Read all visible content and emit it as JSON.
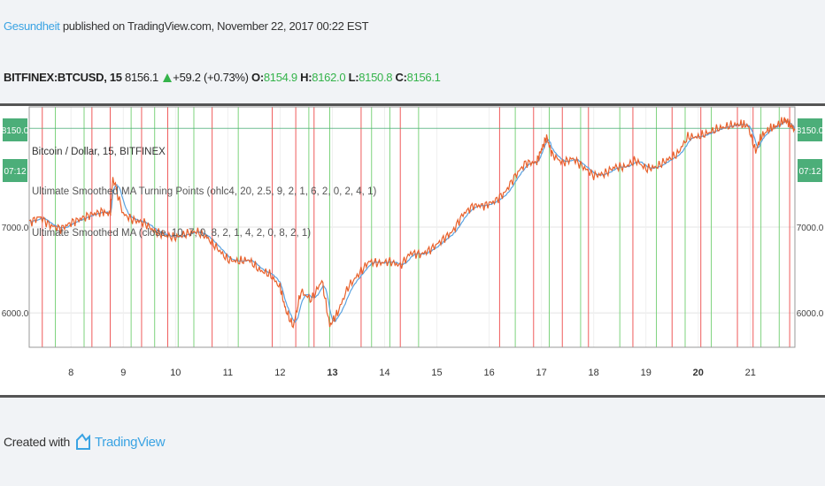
{
  "header": {
    "author": "Gesundheit",
    "published": "published on TradingView.com, November 22, 2017 00:22 EST"
  },
  "ticker": {
    "symbol": "BITFINEX:BTCUSD, 15",
    "last": "8156.1",
    "change": "+59.2 (+0.73%)",
    "o_label": "O:",
    "o_value": "8154.9",
    "h_label": "H:",
    "h_value": "8162.0",
    "l_label": "L:",
    "l_value": "8150.8",
    "c_label": "C:",
    "c_value": "8156.1"
  },
  "footer": {
    "created_with": "Created with",
    "brand": "TradingView"
  },
  "chart_data": {
    "type": "line",
    "legend": {
      "title": "Bitcoin / Dollar, 15, BITFINEX",
      "indicator1": "Ultimate Smoothed MA Turning Points (ohlc4, 20, 2.5, 9, 2, 1, 6, 2, 0, 2, 4, 1)",
      "indicator2": "Ultimate Smoothed MA (close, 10, 7, 0, 8, 2, 1, 4, 2, 0, 8, 2, 1)"
    },
    "x_ticks": [
      "8",
      "9",
      "10",
      "11",
      "12",
      "13",
      "14",
      "15",
      "16",
      "17",
      "18",
      "19",
      "20",
      "21"
    ],
    "x_ticks_bold": [
      "13",
      "20"
    ],
    "y_ticks": [
      "7000.0",
      "6000.0"
    ],
    "y_tick_values": [
      7000,
      6000
    ],
    "ylim": [
      5600,
      8400
    ],
    "xlim": [
      7.2,
      21.85
    ],
    "price_label": "8150.0",
    "time_label": "07:12",
    "price_line_value": 8150,
    "colors": {
      "price": "#e8612c",
      "ma": "#5aa2e0",
      "up_marker": "#7ed37e",
      "down_marker": "#ef5b5b",
      "price_tag": "#4cae79"
    },
    "series": [
      {
        "name": "BTCUSD",
        "x": [
          7.2,
          7.4,
          7.6,
          7.8,
          8.0,
          8.2,
          8.4,
          8.6,
          8.75,
          8.8,
          9.0,
          9.2,
          9.4,
          9.6,
          9.8,
          10.0,
          10.2,
          10.4,
          10.6,
          10.8,
          11.0,
          11.2,
          11.4,
          11.6,
          11.8,
          12.0,
          12.1,
          12.25,
          12.4,
          12.6,
          12.8,
          12.95,
          13.1,
          13.3,
          13.5,
          13.7,
          13.9,
          14.1,
          14.3,
          14.5,
          14.7,
          14.9,
          15.1,
          15.3,
          15.5,
          15.7,
          15.9,
          16.1,
          16.3,
          16.5,
          16.7,
          16.9,
          17.0,
          17.1,
          17.2,
          17.4,
          17.6,
          17.8,
          18.0,
          18.2,
          18.4,
          18.6,
          18.8,
          19.0,
          19.2,
          19.4,
          19.6,
          19.8,
          20.0,
          20.2,
          20.4,
          20.6,
          20.8,
          20.95,
          21.1,
          21.2,
          21.35,
          21.5,
          21.65,
          21.75,
          21.85
        ],
        "values": [
          7050,
          7120,
          7020,
          6980,
          7050,
          7100,
          7150,
          7180,
          7150,
          7580,
          7150,
          7080,
          7050,
          6950,
          6900,
          6880,
          6920,
          6950,
          6880,
          6750,
          6620,
          6600,
          6620,
          6500,
          6450,
          6300,
          6050,
          5840,
          6250,
          6150,
          6380,
          5850,
          6000,
          6300,
          6450,
          6600,
          6580,
          6600,
          6550,
          6700,
          6680,
          6750,
          6850,
          6950,
          7150,
          7250,
          7250,
          7300,
          7400,
          7600,
          7750,
          7750,
          7900,
          8050,
          7850,
          7750,
          7800,
          7700,
          7600,
          7620,
          7700,
          7700,
          7780,
          7680,
          7700,
          7780,
          7850,
          8050,
          8050,
          8100,
          8150,
          8180,
          8200,
          8180,
          7880,
          8050,
          8140,
          8180,
          8250,
          8200,
          8130
        ]
      }
    ],
    "up_markers_x": [
      7.7,
      8.25,
      9.15,
      9.6,
      10.05,
      10.35,
      11.2,
      12.55,
      12.95,
      13.75,
      14.1,
      14.65,
      16.5,
      17.15,
      17.75,
      18.5,
      19.2,
      19.75,
      20.25,
      21.2,
      21.55
    ],
    "down_markers_x": [
      7.45,
      8.4,
      8.75,
      9.35,
      9.85,
      10.7,
      11.85,
      12.3,
      12.65,
      13.55,
      14.3,
      16.2,
      16.85,
      17.4,
      17.9,
      18.75,
      19.5,
      20.05,
      20.75,
      21.05,
      21.75
    ]
  }
}
